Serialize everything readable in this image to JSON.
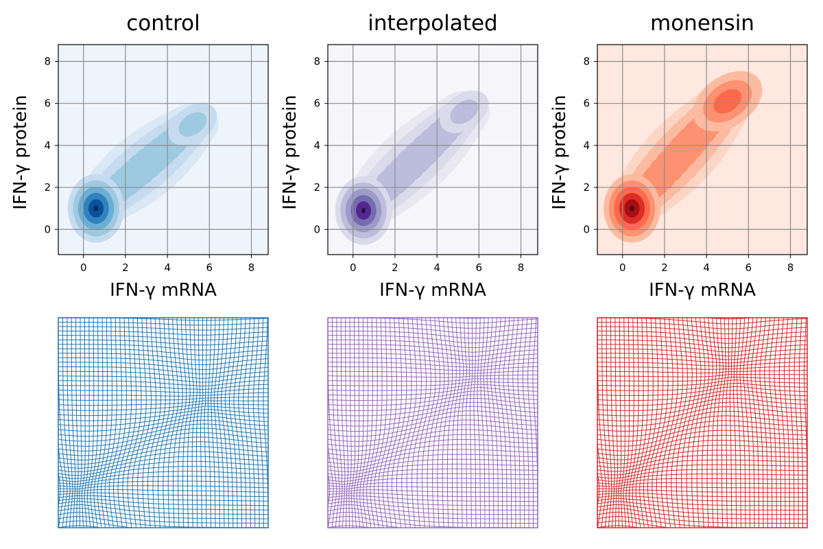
{
  "chart_data": [
    {
      "type": "contour",
      "title": "control",
      "xlabel": "IFN-γ mRNA",
      "ylabel": "IFN-γ protein",
      "xlim": [
        -1.2,
        8.8
      ],
      "ylim": [
        -1.2,
        8.8
      ],
      "xticks": [
        0,
        2,
        4,
        6,
        8
      ],
      "yticks": [
        0,
        2,
        4,
        6,
        8
      ],
      "grid": true,
      "colormap": "Blues",
      "colors": {
        "background": "#eef4fc",
        "levels": [
          "#dae8f6",
          "#c6dbef",
          "#9ecae1",
          "#6baed6",
          "#3182bd",
          "#08519c"
        ]
      },
      "density_modes": [
        {
          "x": 0.6,
          "y": 1.0,
          "weight": 1.0
        },
        {
          "x": 5.2,
          "y": 5.0,
          "weight": 0.35
        }
      ]
    },
    {
      "type": "contour",
      "title": "interpolated",
      "xlabel": "IFN-γ mRNA",
      "ylabel": "IFN-γ protein",
      "xlim": [
        -1.2,
        8.8
      ],
      "ylim": [
        -1.2,
        8.8
      ],
      "xticks": [
        0,
        2,
        4,
        6,
        8
      ],
      "yticks": [
        0,
        2,
        4,
        6,
        8
      ],
      "grid": true,
      "colormap": "Purples",
      "colors": {
        "background": "#f6f6fa",
        "levels": [
          "#e9e8f2",
          "#dadaeb",
          "#bcbddc",
          "#9e9ac8",
          "#756bb1",
          "#54278f"
        ]
      },
      "density_modes": [
        {
          "x": 0.5,
          "y": 0.9,
          "weight": 1.0
        },
        {
          "x": 5.3,
          "y": 5.6,
          "weight": 0.3
        }
      ]
    },
    {
      "type": "contour",
      "title": "monensin",
      "xlabel": "IFN-γ mRNA",
      "ylabel": "IFN-γ protein",
      "xlim": [
        -1.2,
        8.8
      ],
      "ylim": [
        -1.2,
        8.8
      ],
      "xticks": [
        0,
        2,
        4,
        6,
        8
      ],
      "yticks": [
        0,
        2,
        4,
        6,
        8
      ],
      "grid": true,
      "colormap": "Reds",
      "colors": {
        "background": "#fee8df",
        "levels": [
          "#fdd5c4",
          "#fcbba1",
          "#fc9272",
          "#fb6a4a",
          "#de2d26",
          "#a50f15"
        ]
      },
      "density_modes": [
        {
          "x": 0.45,
          "y": 1.0,
          "weight": 1.0
        },
        {
          "x": 5.0,
          "y": 6.1,
          "weight": 0.5
        }
      ]
    }
  ],
  "warp_grids": [
    {
      "color": "#1f77b4",
      "dense_lower": [
        0.12,
        0.2
      ],
      "dense_upper": [
        0.68,
        0.6
      ]
    },
    {
      "color": "#9467bd",
      "dense_lower": [
        0.12,
        0.2
      ],
      "dense_upper": [
        0.68,
        0.7
      ]
    },
    {
      "color": "#d62728",
      "dense_lower": [
        0.12,
        0.2
      ],
      "dense_upper": [
        0.62,
        0.72
      ]
    }
  ]
}
